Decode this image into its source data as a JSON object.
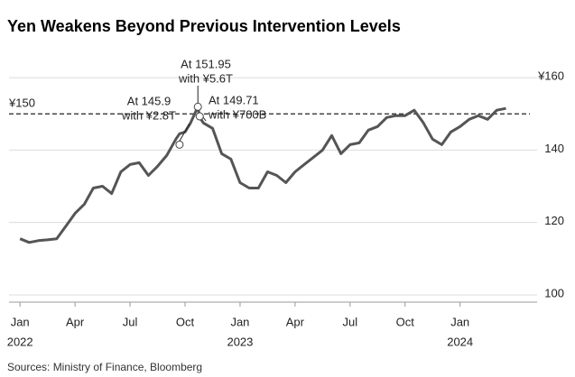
{
  "chart_data": {
    "type": "line",
    "title": "Yen Weakens Beyond Previous Intervention Levels",
    "source": "Sources: Ministry of Finance, Bloomberg",
    "x": [
      0,
      0.5,
      1,
      1.5,
      2,
      2.5,
      3,
      3.5,
      4,
      4.5,
      5,
      5.5,
      6,
      6.5,
      7,
      7.5,
      8,
      8.5,
      8.7,
      9,
      9.3,
      9.7,
      9.8,
      10,
      10.5,
      11,
      11.5,
      12,
      12.5,
      13,
      13.5,
      14,
      14.5,
      15,
      15.5,
      16,
      16.5,
      17,
      17.5,
      18,
      18.5,
      19,
      19.5,
      20,
      20.5,
      21,
      21.5,
      22,
      22.5,
      23,
      23.5,
      24,
      24.5,
      25,
      25.5,
      26,
      26.5
    ],
    "values": [
      115.5,
      114.5,
      115,
      115.2,
      115.5,
      119,
      122.5,
      125,
      129.5,
      130,
      128,
      134,
      136,
      136.5,
      133,
      135.5,
      138.5,
      143,
      144.5,
      145,
      147.5,
      151.95,
      149,
      147.5,
      146,
      139,
      137.5,
      131,
      129.5,
      129.5,
      134,
      133,
      131,
      134,
      136,
      138,
      140,
      144,
      139,
      141.5,
      142,
      145.5,
      146.5,
      149,
      149.5,
      149.5,
      151,
      147.5,
      143,
      141.5,
      145,
      146.5,
      148.5,
      149.5,
      148.5,
      151,
      151.5
    ],
    "color": "#555555",
    "xlim": [
      -0.6,
      28.2
    ],
    "xticks": [
      {
        "value": 0,
        "label": "Jan"
      },
      {
        "value": 3,
        "label": "Apr"
      },
      {
        "value": 6,
        "label": "Jul"
      },
      {
        "value": 9,
        "label": "Oct"
      },
      {
        "value": 12,
        "label": "Jan"
      },
      {
        "value": 15,
        "label": "Apr"
      },
      {
        "value": 18,
        "label": "Jul"
      },
      {
        "value": 21,
        "label": "Oct"
      },
      {
        "value": 24,
        "label": "Jan"
      }
    ],
    "year_labels": [
      {
        "value": 0,
        "label": "2022"
      },
      {
        "value": 12,
        "label": "2023"
      },
      {
        "value": 24,
        "label": "2024"
      }
    ],
    "ylim": [
      98,
      166
    ],
    "yticks": [
      100,
      120,
      140,
      {
        "value": 160,
        "label": "¥160"
      }
    ],
    "grid": true,
    "reference_line": {
      "value": 150,
      "label": "¥150"
    },
    "annotations": [
      {
        "point": [
          8.7,
          141.5
        ],
        "lines": [
          "At 145.9",
          "with ¥2.8T"
        ]
      },
      {
        "point": [
          9.7,
          151.95
        ],
        "lines": [
          "At 151.95",
          "with ¥5.6T"
        ]
      },
      {
        "point": [
          9.8,
          149.3
        ],
        "lines": [
          "At 149.71",
          "with ¥700B"
        ]
      }
    ]
  }
}
